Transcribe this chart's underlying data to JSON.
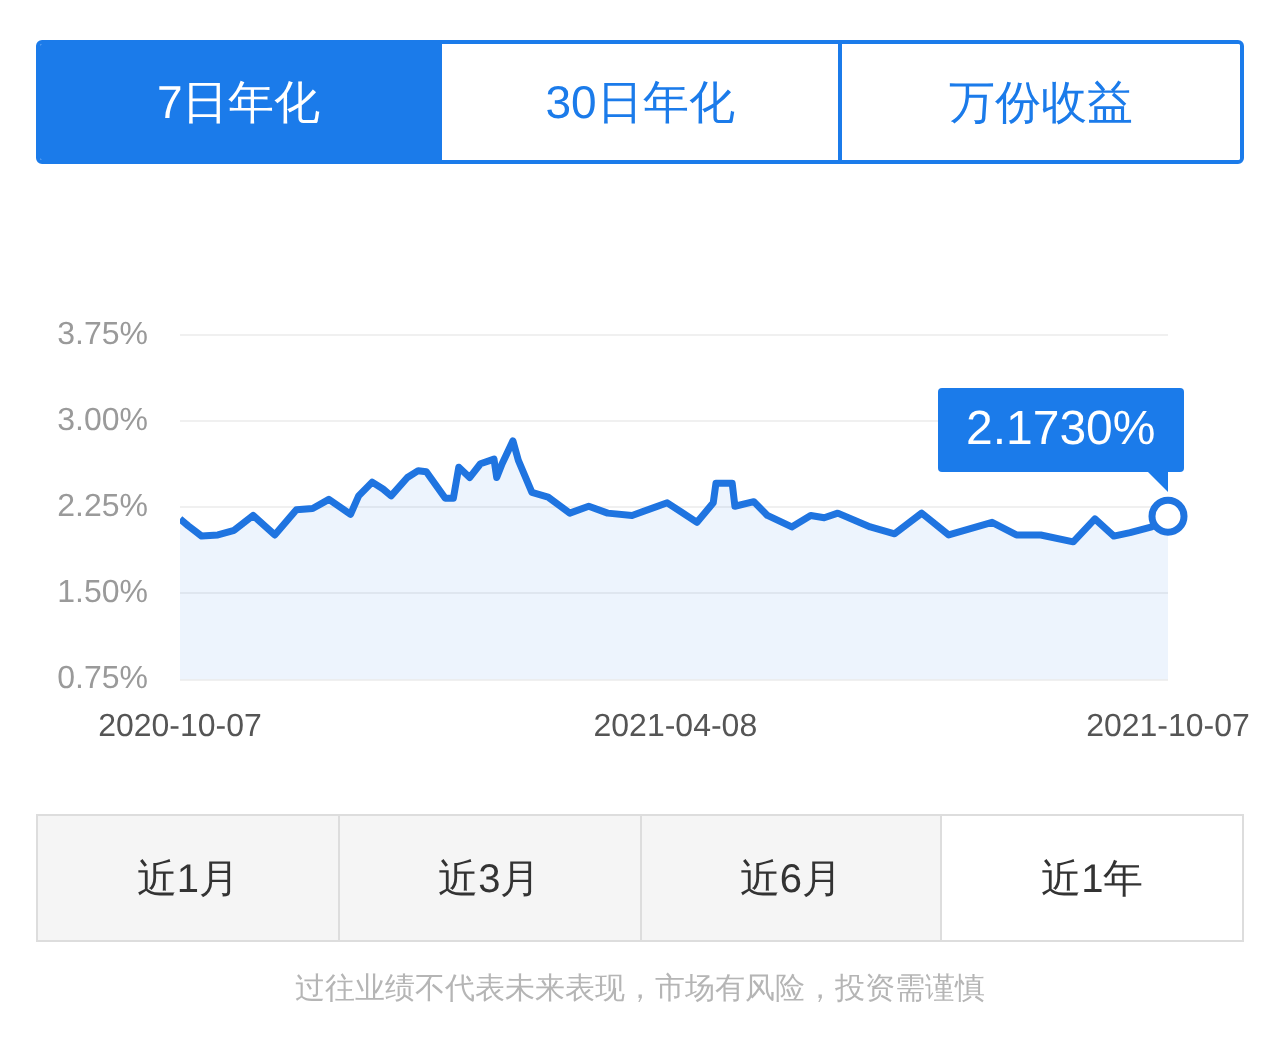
{
  "chart_data": {
    "type": "area",
    "x": [
      "2020-10-07",
      "2020-10-10",
      "2020-10-15",
      "2020-10-21",
      "2020-10-27",
      "2020-11-03",
      "2020-11-11",
      "2020-11-19",
      "2020-11-25",
      "2020-12-01",
      "2020-12-09",
      "2020-12-12",
      "2020-12-17",
      "2020-12-21",
      "2020-12-24",
      "2020-12-30",
      "2021-01-03",
      "2021-01-06",
      "2021-01-13",
      "2021-01-16",
      "2021-01-18",
      "2021-01-22",
      "2021-01-26",
      "2021-01-31",
      "2021-02-01",
      "2021-02-03",
      "2021-02-07",
      "2021-02-09",
      "2021-02-14",
      "2021-02-20",
      "2021-02-28",
      "2021-03-07",
      "2021-03-14",
      "2021-03-23",
      "2021-04-05",
      "2021-04-16",
      "2021-04-22",
      "2021-04-23",
      "2021-04-29",
      "2021-04-30",
      "2021-05-07",
      "2021-05-12",
      "2021-05-21",
      "2021-05-28",
      "2021-06-02",
      "2021-06-07",
      "2021-06-19",
      "2021-06-28",
      "2021-07-08",
      "2021-07-18",
      "2021-08-03",
      "2021-08-12",
      "2021-08-21",
      "2021-09-02",
      "2021-09-10",
      "2021-09-17",
      "2021-09-23",
      "2021-10-01",
      "2021-10-07"
    ],
    "series": [
      {
        "color": "#1f74e0",
        "values": [
          2.15,
          2.09,
          2.0,
          2.01,
          2.05,
          2.18,
          2.01,
          2.23,
          2.24,
          2.32,
          2.19,
          2.35,
          2.47,
          2.41,
          2.35,
          2.51,
          2.57,
          2.56,
          2.33,
          2.33,
          2.6,
          2.51,
          2.63,
          2.67,
          2.51,
          2.63,
          2.83,
          2.66,
          2.38,
          2.34,
          2.2,
          2.26,
          2.2,
          2.18,
          2.29,
          2.12,
          2.29,
          2.46,
          2.46,
          2.26,
          2.3,
          2.18,
          2.08,
          2.18,
          2.16,
          2.2,
          2.08,
          2.02,
          2.2,
          2.01,
          2.12,
          2.01,
          2.01,
          1.95,
          2.15,
          2.0,
          2.03,
          2.08,
          2.17
        ]
      }
    ],
    "xlim": [
      "2020-10-07",
      "2021-10-07"
    ],
    "xticks": [
      "2020-10-07",
      "2021-04-08",
      "2021-10-07"
    ],
    "ylim": [
      0.75,
      3.75
    ],
    "yticks": [
      {
        "value": 0.75,
        "label": "0.75%"
      },
      {
        "value": 1.5,
        "label": "1.50%"
      },
      {
        "value": 2.25,
        "label": "2.25%"
      },
      {
        "value": 3,
        "label": "3.00%"
      },
      {
        "value": 3.75,
        "label": "3.75%"
      }
    ],
    "grid": "y",
    "legend": false,
    "marker": "none",
    "line_style": "solid",
    "annotations": [
      "7日年化",
      "30日年化",
      "万份收益",
      "近1月",
      "近3月",
      "近6月",
      "近1年",
      "过往业绩不代表未来表现，市场有风险，投资需谨慎",
      {
        "text": "2.1730%",
        "x": "2021-10-07",
        "y": 2.173
      }
    ]
  }
}
